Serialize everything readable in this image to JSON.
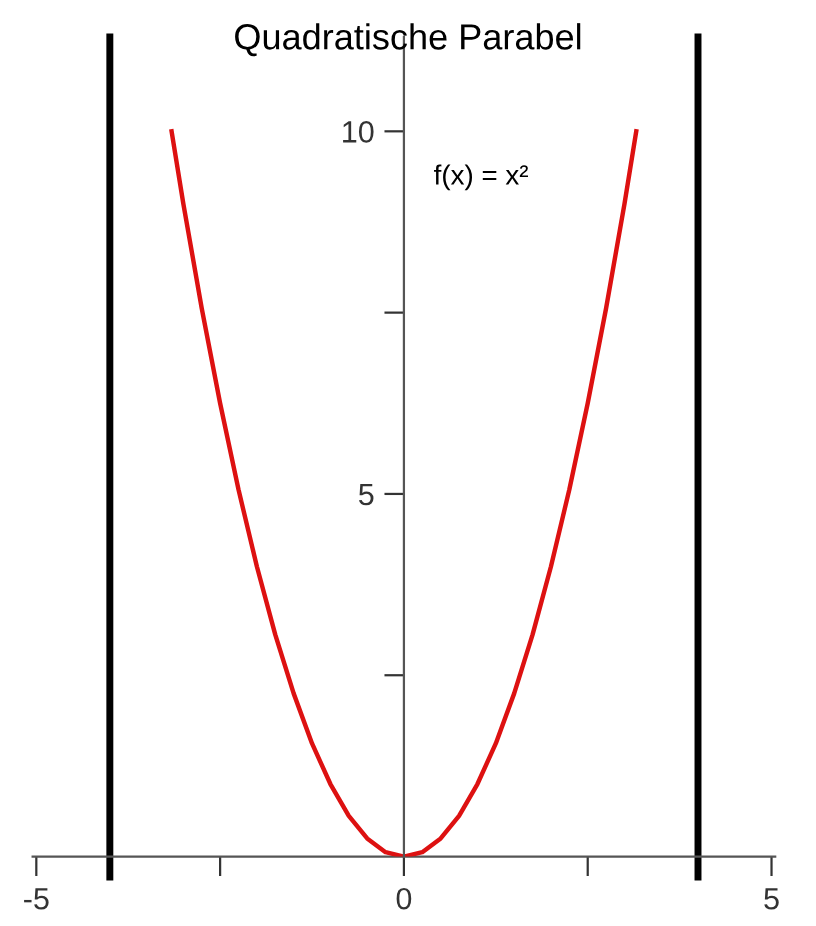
{
  "chart_data": {
    "type": "line",
    "title": "Quadratische Parabel",
    "annotations": [
      "f(x) = x²"
    ],
    "x": [
      -3.16,
      -3,
      -2.75,
      -2.5,
      -2.25,
      -2,
      -1.75,
      -1.5,
      -1.25,
      -1,
      -0.75,
      -0.5,
      -0.25,
      0,
      0.25,
      0.5,
      0.75,
      1,
      1.25,
      1.5,
      1.75,
      2,
      2.25,
      2.5,
      2.75,
      3,
      3.16
    ],
    "series": [
      {
        "color": "#dd1111",
        "values": [
          10,
          9,
          7.56,
          6.25,
          5.06,
          4,
          3.06,
          2.25,
          1.56,
          1,
          0.56,
          0.25,
          0.06,
          0,
          0.06,
          0.25,
          0.56,
          1,
          1.56,
          2.25,
          3.06,
          4,
          5.06,
          6.25,
          7.56,
          9,
          10
        ]
      }
    ],
    "xlim": [
      -5.05,
      5.05
    ],
    "ylim": [
      0,
      11.3
    ],
    "xticks": [
      -5,
      {
        "value": -2.5,
        "label": null
      },
      0,
      {
        "value": 2.5,
        "label": null
      },
      5
    ],
    "yticks": [
      {
        "value": 2.5,
        "label": null
      },
      5,
      {
        "value": 7.5,
        "label": null
      },
      10
    ],
    "ref_lines": [
      {
        "axis": "x",
        "value": -4,
        "color": "#000000"
      },
      {
        "axis": "x",
        "value": 4,
        "color": "#000000"
      }
    ],
    "grid": false,
    "legend": false,
    "marker": "none",
    "line_style": "solid"
  }
}
